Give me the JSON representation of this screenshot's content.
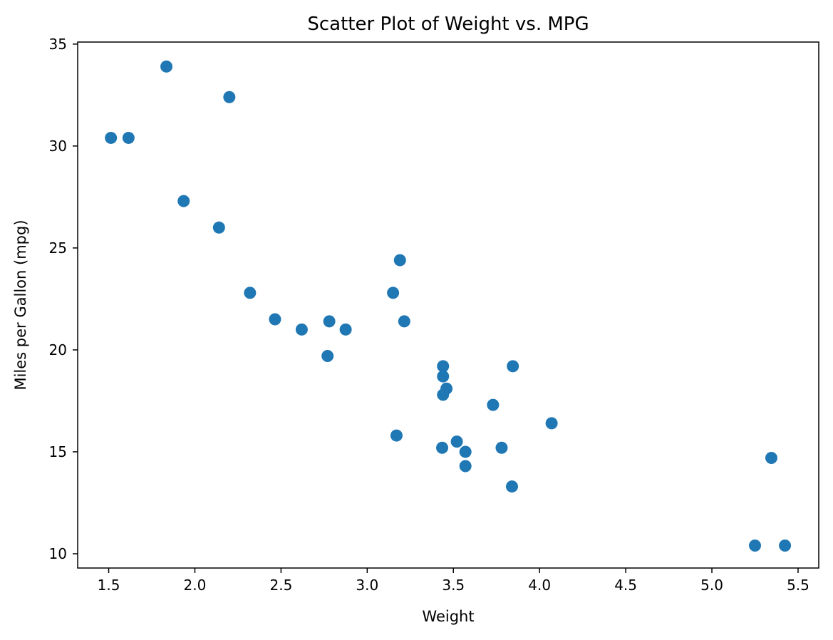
{
  "chart_data": {
    "type": "scatter",
    "title": "Scatter Plot of Weight vs. MPG",
    "xlabel": "Weight",
    "ylabel": "Miles per Gallon (mpg)",
    "xlim": [
      1.32,
      5.62
    ],
    "ylim": [
      9.3,
      35.1
    ],
    "xticks": [
      1.5,
      2.0,
      2.5,
      3.0,
      3.5,
      4.0,
      4.5,
      5.0,
      5.5
    ],
    "xtick_labels": [
      "1.5",
      "2.0",
      "2.5",
      "3.0",
      "3.5",
      "4.0",
      "4.5",
      "5.0",
      "5.5"
    ],
    "yticks": [
      10,
      15,
      20,
      25,
      30,
      35
    ],
    "ytick_labels": [
      "10",
      "15",
      "20",
      "25",
      "30",
      "35"
    ],
    "grid": false,
    "marker_color": "#1f77b4",
    "series": [
      {
        "points": [
          {
            "x": 1.513,
            "y": 30.4
          },
          {
            "x": 1.615,
            "y": 30.4
          },
          {
            "x": 1.835,
            "y": 33.9
          },
          {
            "x": 1.935,
            "y": 27.3
          },
          {
            "x": 2.14,
            "y": 26.0
          },
          {
            "x": 2.2,
            "y": 32.4
          },
          {
            "x": 2.32,
            "y": 22.8
          },
          {
            "x": 2.465,
            "y": 21.5
          },
          {
            "x": 2.62,
            "y": 21.0
          },
          {
            "x": 2.77,
            "y": 19.7
          },
          {
            "x": 2.78,
            "y": 21.4
          },
          {
            "x": 2.875,
            "y": 21.0
          },
          {
            "x": 3.15,
            "y": 22.8
          },
          {
            "x": 3.17,
            "y": 15.8
          },
          {
            "x": 3.19,
            "y": 24.4
          },
          {
            "x": 3.215,
            "y": 21.4
          },
          {
            "x": 3.435,
            "y": 15.2
          },
          {
            "x": 3.44,
            "y": 18.7
          },
          {
            "x": 3.44,
            "y": 19.2
          },
          {
            "x": 3.44,
            "y": 17.8
          },
          {
            "x": 3.46,
            "y": 18.1
          },
          {
            "x": 3.52,
            "y": 15.5
          },
          {
            "x": 3.57,
            "y": 14.3
          },
          {
            "x": 3.57,
            "y": 15.0
          },
          {
            "x": 3.73,
            "y": 17.3
          },
          {
            "x": 3.78,
            "y": 15.2
          },
          {
            "x": 3.84,
            "y": 13.3
          },
          {
            "x": 3.845,
            "y": 19.2
          },
          {
            "x": 4.07,
            "y": 16.4
          },
          {
            "x": 5.25,
            "y": 10.4
          },
          {
            "x": 5.345,
            "y": 14.7
          },
          {
            "x": 5.424,
            "y": 10.4
          }
        ]
      }
    ]
  }
}
